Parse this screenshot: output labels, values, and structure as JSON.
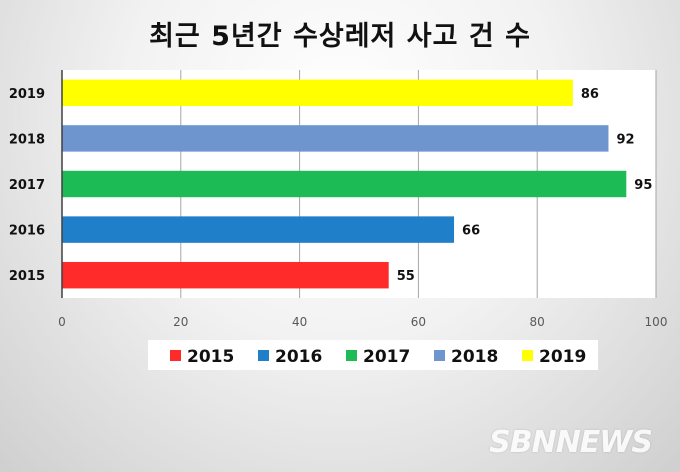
{
  "title": "최근 5년간 수상레저 사고 건 수",
  "watermark": "SBNNEWS",
  "chart_data": {
    "type": "bar",
    "orientation": "horizontal",
    "title": "최근 5년간 수상레저 사고 건 수",
    "categories": [
      "2019",
      "2018",
      "2017",
      "2016",
      "2015"
    ],
    "values": [
      86,
      92,
      95,
      66,
      55
    ],
    "colors": [
      "#ffff00",
      "#6f95ce",
      "#1dbb55",
      "#1f7fc9",
      "#ff2a2a"
    ],
    "xlim": [
      0,
      100
    ],
    "xticks": [
      0,
      20,
      40,
      60,
      80,
      100
    ],
    "grid": true,
    "data_labels": true,
    "legend": {
      "position": "bottom",
      "entries": [
        {
          "label": "2015",
          "color": "#ff2a2a"
        },
        {
          "label": "2016",
          "color": "#1f7fc9"
        },
        {
          "label": "2017",
          "color": "#1dbb55"
        },
        {
          "label": "2018",
          "color": "#6f95ce"
        },
        {
          "label": "2019",
          "color": "#ffff00"
        }
      ]
    }
  }
}
